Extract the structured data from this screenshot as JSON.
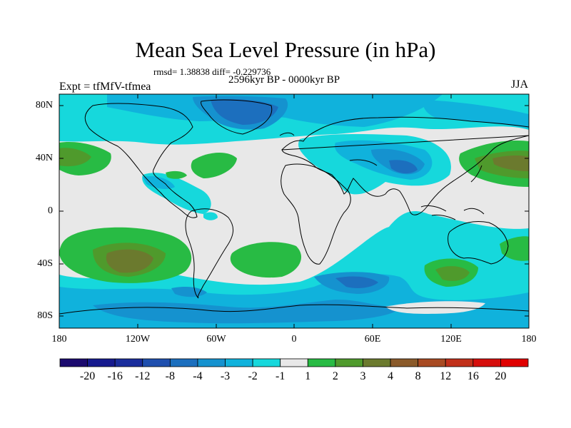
{
  "title": "Mean Sea Level Pressure (in hPa)",
  "stats": "rmsd= 1.38838 diff= -0.229736",
  "subtitle": "2596kyr BP - 0000kyr BP",
  "experiment": "Expt = tfMfV-tfmea",
  "season": "JJA",
  "axes": {
    "y_ticks": [
      "80N",
      "40N",
      "0",
      "40S",
      "80S"
    ],
    "x_ticks": [
      "180",
      "120W",
      "60W",
      "0",
      "60E",
      "120E",
      "180"
    ]
  },
  "colorbar": {
    "labels": [
      "-20",
      "-16",
      "-12",
      "-8",
      "-4",
      "-3",
      "-2",
      "-1",
      "1",
      "2",
      "3",
      "4",
      "8",
      "12",
      "16",
      "20"
    ],
    "colors": [
      "#1b0a6e",
      "#161a8e",
      "#1a2d9c",
      "#1f4fae",
      "#1c6fbe",
      "#1592cf",
      "#10b2dc",
      "#16d8dc",
      "#e8e8e8",
      "#28bb44",
      "#4f9a2c",
      "#6b7a2e",
      "#8a5a2a",
      "#a84a22",
      "#c1301a",
      "#d60e0c",
      "#e00000"
    ]
  },
  "chart_data": {
    "type": "contour-map",
    "title": "Mean Sea Level Pressure (in hPa)",
    "subtitle": "2596kyr BP - 0000kyr BP",
    "variable": "Mean sea level pressure difference",
    "units": "hPa",
    "projection": "cylindrical equidistant",
    "lon_range": [
      -180,
      180
    ],
    "lat_range": [
      -90,
      90
    ],
    "contour_levels": [
      -20,
      -16,
      -12,
      -8,
      -4,
      -3,
      -2,
      -1,
      1,
      2,
      3,
      4,
      8,
      12,
      16,
      20
    ],
    "season": "JJA",
    "rmsd": 1.38838,
    "diff": -0.229736
  }
}
